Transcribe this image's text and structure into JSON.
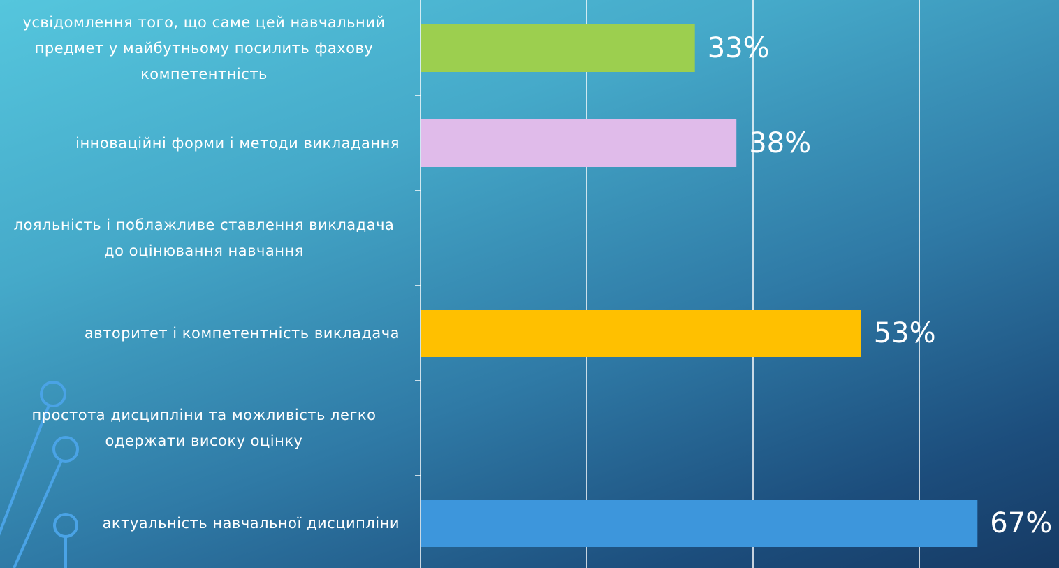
{
  "chart_data": {
    "type": "bar",
    "orientation": "horizontal",
    "categories": [
      "усвідомлення того, що саме цей навчальний предмет у майбутньому посилить фахову компетентність",
      "інноваційні форми і методи викладання",
      "лояльність і поблажливе ставлення викладача до оцінювання навчання",
      "авторитет і компетентність викладача",
      "простота дисципліни та можливість легко одержати високу оцінку",
      "актуальність навчальної дисципліни"
    ],
    "values": [
      33,
      38,
      null,
      53,
      null,
      67
    ],
    "value_labels": [
      "33%",
      "38%",
      null,
      "53%",
      null,
      "67%"
    ],
    "colors": [
      "#9ccf4f",
      "#e0bbea",
      null,
      "#ffc000",
      null,
      "#3d96dc"
    ],
    "xlim": [
      0,
      80
    ],
    "xticks": [
      0,
      20,
      40,
      60
    ],
    "grid": true
  }
}
